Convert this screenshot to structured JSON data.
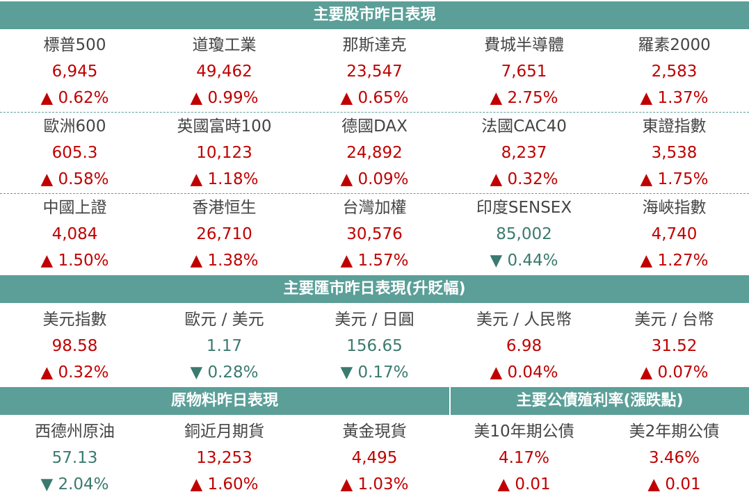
{
  "sections": {
    "stocks": {
      "title": "主要股市昨日表現",
      "rows": [
        [
          {
            "name": "標普500",
            "value": "6,945",
            "change": "▲ 0.62%",
            "dir": "up"
          },
          {
            "name": "道瓊工業",
            "value": "49,462",
            "change": "▲ 0.99%",
            "dir": "up"
          },
          {
            "name": "那斯達克",
            "value": "23,547",
            "change": "▲ 0.65%",
            "dir": "up"
          },
          {
            "name": "費城半導體",
            "value": "7,651",
            "change": "▲ 2.75%",
            "dir": "up"
          },
          {
            "name": "羅素2000",
            "value": "2,583",
            "change": "▲ 1.37%",
            "dir": "up"
          }
        ],
        [
          {
            "name": "歐洲600",
            "value": "605.3",
            "change": "▲ 0.58%",
            "dir": "up"
          },
          {
            "name": "英國富時100",
            "value": "10,123",
            "change": "▲ 1.18%",
            "dir": "up"
          },
          {
            "name": "德國DAX",
            "value": "24,892",
            "change": "▲ 0.09%",
            "dir": "up"
          },
          {
            "name": "法國CAC40",
            "value": "8,237",
            "change": "▲ 0.32%",
            "dir": "up"
          },
          {
            "name": "東證指數",
            "value": "3,538",
            "change": "▲ 1.75%",
            "dir": "up"
          }
        ],
        [
          {
            "name": "中國上證",
            "value": "4,084",
            "change": "▲ 1.50%",
            "dir": "up"
          },
          {
            "name": "香港恒生",
            "value": "26,710",
            "change": "▲ 1.38%",
            "dir": "up"
          },
          {
            "name": "台灣加權",
            "value": "30,576",
            "change": "▲ 1.57%",
            "dir": "up"
          },
          {
            "name": "印度SENSEX",
            "value": "85,002",
            "change": "▼ 0.44%",
            "dir": "down"
          },
          {
            "name": "海峽指數",
            "value": "4,740",
            "change": "▲ 1.27%",
            "dir": "up"
          }
        ]
      ]
    },
    "fx": {
      "title": "主要匯市昨日表現(升貶幅)",
      "items": [
        {
          "name": "美元指數",
          "value": "98.58",
          "change": "▲ 0.32%",
          "dir": "up"
        },
        {
          "name": "歐元 / 美元",
          "value": "1.17",
          "change": "▼ 0.28%",
          "dir": "down"
        },
        {
          "name": "美元 / 日圓",
          "value": "156.65",
          "change": "▼ 0.17%",
          "dir": "down"
        },
        {
          "name": "美元 / 人民幣",
          "value": "6.98",
          "change": "▲ 0.04%",
          "dir": "up"
        },
        {
          "name": "美元 / 台幣",
          "value": "31.52",
          "change": "▲ 0.07%",
          "dir": "up"
        }
      ]
    },
    "commodities": {
      "title": "原物料昨日表現",
      "items": [
        {
          "name": "西德州原油",
          "value": "57.13",
          "change": "▼ 2.04%",
          "dir": "down"
        },
        {
          "name": "銅近月期貨",
          "value": "13,253",
          "change": "▲ 1.60%",
          "dir": "up"
        },
        {
          "name": "黃金現貨",
          "value": "4,495",
          "change": "▲ 1.03%",
          "dir": "up"
        }
      ]
    },
    "bonds": {
      "title": "主要公債殖利率(漲跌點)",
      "items": [
        {
          "name": "美10年期公債",
          "value": "4.17%",
          "change": "▲ 0.01",
          "dir": "up"
        },
        {
          "name": "美2年期公債",
          "value": "3.46%",
          "change": "▲ 0.01",
          "dir": "up"
        }
      ]
    }
  },
  "colors": {
    "header": "#5b9f98",
    "up": "#c00000",
    "down": "#3b7a6e"
  }
}
